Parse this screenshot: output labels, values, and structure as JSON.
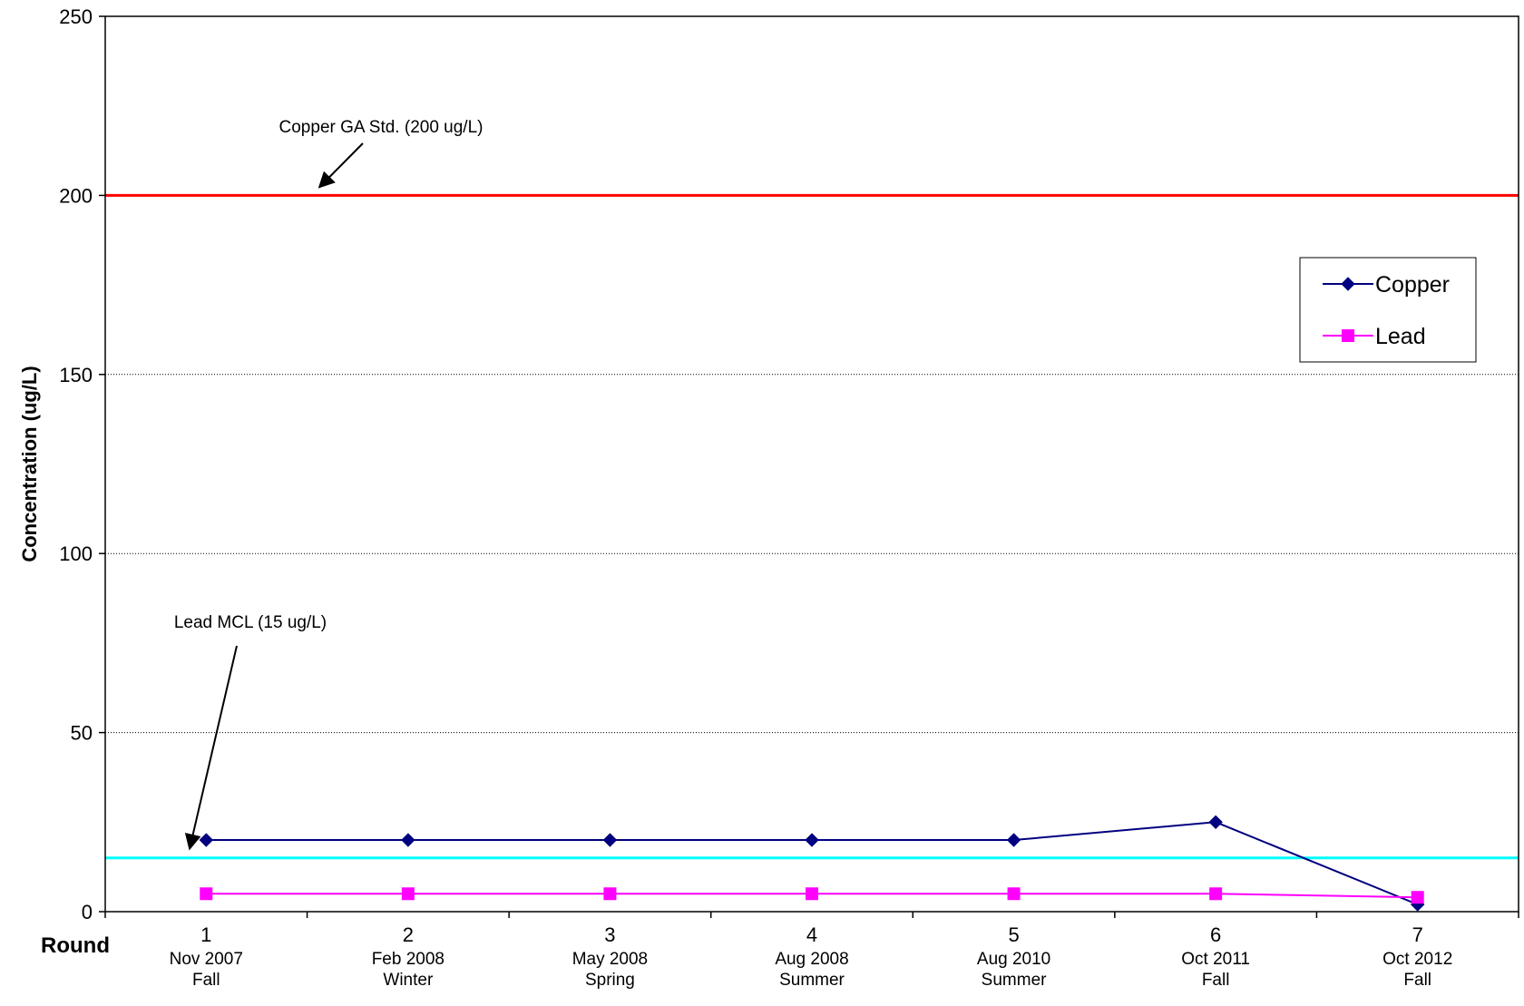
{
  "chart_data": {
    "type": "line",
    "ylabel": "Concentration (ug/L)",
    "xlabel": "Round",
    "ylim": [
      0,
      250
    ],
    "yticks": [
      0,
      50,
      100,
      150,
      200,
      250
    ],
    "grid": "horizontal dotted at 50, 100, 150",
    "legend_position": "right",
    "categories": [
      {
        "round": "1",
        "date": "Nov 2007",
        "season": "Fall"
      },
      {
        "round": "2",
        "date": "Feb 2008",
        "season": "Winter"
      },
      {
        "round": "3",
        "date": "May 2008",
        "season": "Spring"
      },
      {
        "round": "4",
        "date": "Aug 2008",
        "season": "Summer"
      },
      {
        "round": "5",
        "date": "Aug 2010",
        "season": "Summer"
      },
      {
        "round": "6",
        "date": "Oct 2011",
        "season": "Fall"
      },
      {
        "round": "7",
        "date": "Oct 2012",
        "season": "Fall"
      }
    ],
    "series": [
      {
        "name": "Copper",
        "color": "#000080",
        "marker": "diamond",
        "values": [
          20,
          20,
          20,
          20,
          20,
          25,
          2
        ]
      },
      {
        "name": "Lead",
        "color": "#FF00FF",
        "marker": "square",
        "values": [
          5,
          5,
          5,
          5,
          5,
          5,
          4
        ]
      }
    ],
    "reference_lines": [
      {
        "label": "Copper GA Std. (200 ug/L)",
        "value": 200,
        "color": "#FF0000"
      },
      {
        "label": "Lead MCL (15 ug/L)",
        "value": 15,
        "color": "#00FFFF"
      }
    ]
  }
}
